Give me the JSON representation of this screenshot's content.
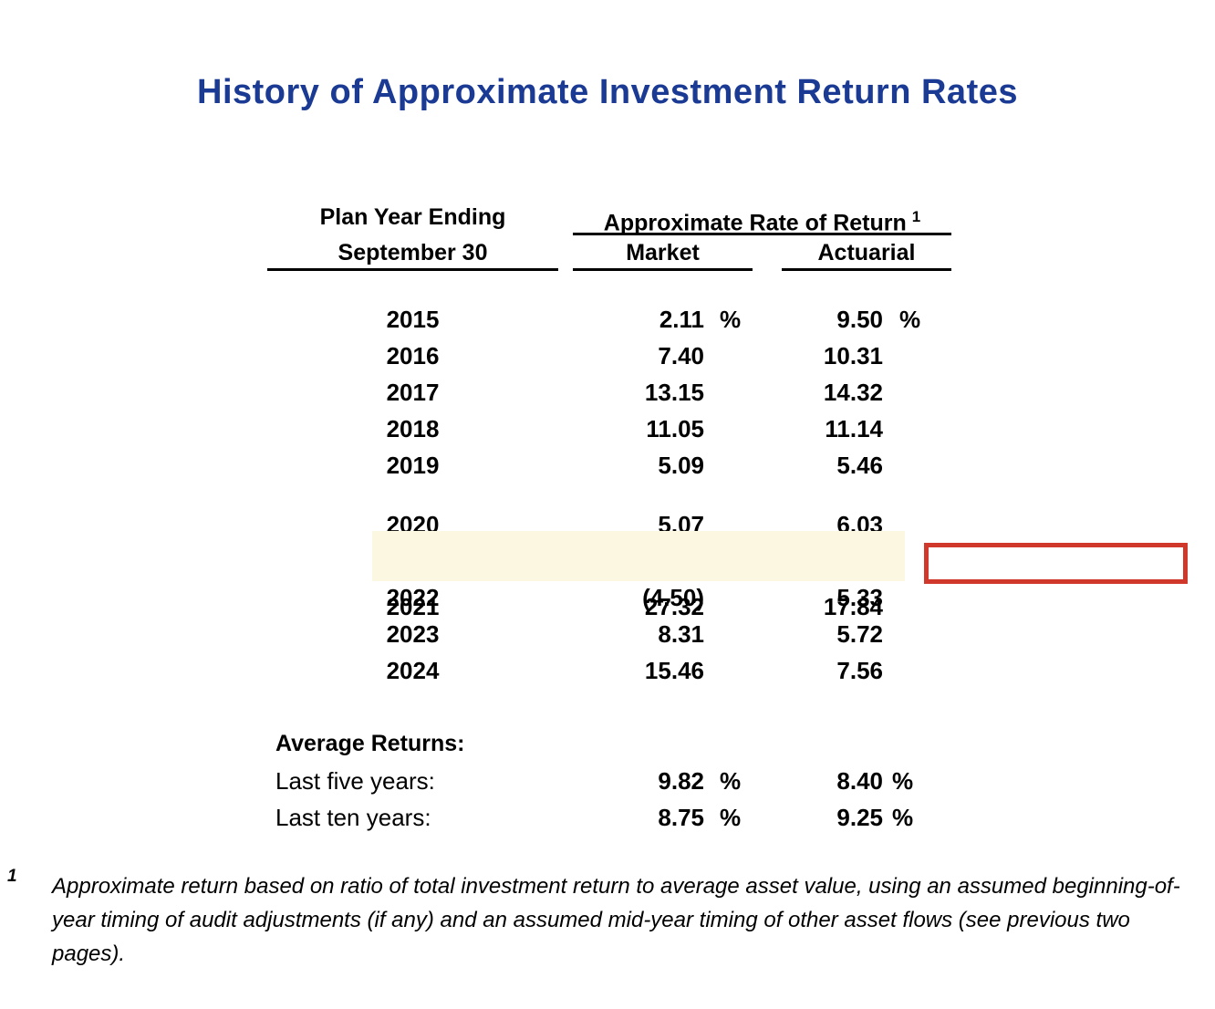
{
  "title": "History of Approximate Investment Return Rates",
  "colors": {
    "title_blue": "#1a3a94",
    "highlight_bg": "#fbf7e1",
    "callout_red": "#cf382a"
  },
  "table": {
    "year_header_line1": "Plan Year Ending",
    "year_header_line2": "September 30",
    "return_header": "Approximate Rate of Return",
    "return_header_sup": "1",
    "market_header": "Market",
    "actuarial_header": "Actuarial",
    "rows": [
      {
        "year": "2015",
        "market": "2.11",
        "market_pct": "%",
        "actuarial": "9.50",
        "actuarial_pct": "%"
      },
      {
        "year": "2016",
        "market": "7.40",
        "market_pct": "",
        "actuarial": "10.31",
        "actuarial_pct": ""
      },
      {
        "year": "2017",
        "market": "13.15",
        "market_pct": "",
        "actuarial": "14.32",
        "actuarial_pct": ""
      },
      {
        "year": "2018",
        "market": "11.05",
        "market_pct": "",
        "actuarial": "11.14",
        "actuarial_pct": ""
      },
      {
        "year": "2019",
        "market": "5.09",
        "market_pct": "",
        "actuarial": "5.46",
        "actuarial_pct": ""
      },
      {
        "year": "2020",
        "market": "5.07",
        "market_pct": "",
        "actuarial": "6.03",
        "actuarial_pct": ""
      },
      {
        "year": "2021",
        "market": "27.32",
        "market_pct": "",
        "actuarial": "17.84",
        "actuarial_pct": "",
        "highlighted": true
      },
      {
        "year": "2022",
        "market": "(4.50)",
        "market_pct": "",
        "actuarial": "5.33",
        "actuarial_pct": ""
      },
      {
        "year": "2023",
        "market": "8.31",
        "market_pct": "",
        "actuarial": "5.72",
        "actuarial_pct": ""
      },
      {
        "year": "2024",
        "market": "15.46",
        "market_pct": "",
        "actuarial": "7.56",
        "actuarial_pct": ""
      }
    ]
  },
  "averages": {
    "heading": "Average Returns:",
    "rows": [
      {
        "label": "Last five years:",
        "market": "9.82",
        "market_pct": "%",
        "actuarial": "8.40",
        "actuarial_pct": "%"
      },
      {
        "label": "Last ten years:",
        "market": "8.75",
        "market_pct": "%",
        "actuarial": "9.25",
        "actuarial_pct": "%"
      }
    ]
  },
  "footnote": {
    "ref": "1",
    "text": "Approximate return based on ratio of total investment return to average asset value, using an assumed beginning-of-year timing of audit adjustments (if any) and an assumed mid-year timing of other asset flows (see previous two pages)."
  }
}
